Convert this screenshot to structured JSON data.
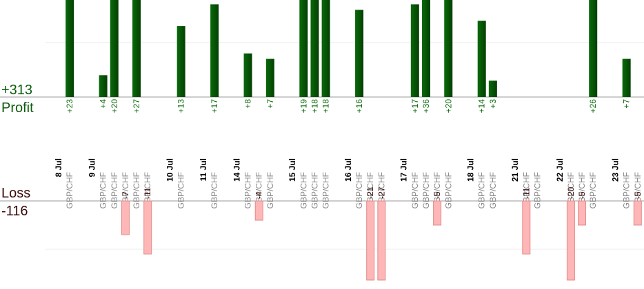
{
  "chart_data": {
    "type": "profit-loss",
    "profit_total": "+313",
    "profit_label": "Profit",
    "loss_label": "Loss",
    "loss_total": "-116",
    "profit_ylim": [
      0,
      17.8
    ],
    "profit_yticks": [
      0,
      10
    ],
    "loss_ylim": [
      0,
      -16.4
    ],
    "loss_yticks": [
      0,
      -10
    ],
    "days": [
      {
        "date": "8 Jul",
        "trades": [
          {
            "pair": "GBP/CHF",
            "value": 23,
            "label": "+23"
          }
        ]
      },
      {
        "date": "9 Jul",
        "trades": [
          {
            "pair": "GBP/CHF",
            "value": 4,
            "label": "+4"
          },
          {
            "pair": "GBP/CHF",
            "value": 20,
            "label": "+20"
          },
          {
            "pair": "GBP/CHF",
            "value": -7
          },
          {
            "pair": "GBP/CHF",
            "value": 27,
            "label": "+27"
          },
          {
            "pair": "GBP/CHF",
            "value": -11
          }
        ]
      },
      {
        "date": "10 Jul",
        "trades": [
          {
            "pair": "GBP/CHF",
            "value": 13,
            "label": "+13"
          }
        ]
      },
      {
        "date": "11 Jul",
        "trades": [
          {
            "pair": "GBP/CHF",
            "value": 17,
            "label": "+17"
          }
        ]
      },
      {
        "date": "14 Jul",
        "trades": [
          {
            "pair": "GBP/CHF",
            "value": 8,
            "label": "+8"
          },
          {
            "pair": "GBP/CHF",
            "value": -4
          },
          {
            "pair": "GBP/CHF",
            "value": 7,
            "label": "+7"
          }
        ]
      },
      {
        "date": "15 Jul",
        "trades": [
          {
            "pair": "GBP/CHF",
            "value": 19,
            "label": "+19"
          },
          {
            "pair": "GBP/CHF",
            "value": 18,
            "label": "+18"
          },
          {
            "pair": "GBP/CHF",
            "value": 18,
            "label": "+18"
          }
        ]
      },
      {
        "date": "16 Jul",
        "trades": [
          {
            "pair": "GBP/CHF",
            "value": 16,
            "label": "+16"
          },
          {
            "pair": "GBP/CHF",
            "value": -21
          },
          {
            "pair": "GBP/CHF",
            "value": -27
          }
        ]
      },
      {
        "date": "17 Jul",
        "trades": [
          {
            "pair": "GBP/CHF",
            "value": 17,
            "label": "+17"
          },
          {
            "pair": "GBP/CHF",
            "value": 36,
            "label": "+36"
          },
          {
            "pair": "GBP/CHF",
            "value": -5
          },
          {
            "pair": "GBP/CHF",
            "value": 20,
            "label": "+20"
          }
        ]
      },
      {
        "date": "18 Jul",
        "trades": [
          {
            "pair": "GBP/CHF",
            "value": 14,
            "label": "+14"
          },
          {
            "pair": "GBP/CHF",
            "value": 3,
            "label": "+3"
          }
        ]
      },
      {
        "date": "21 Jul",
        "trades": [
          {
            "pair": "GBP/CHF",
            "value": -11
          },
          {
            "pair": "GBP/CHF",
            "value": null
          }
        ]
      },
      {
        "date": "22 Jul",
        "trades": [
          {
            "pair": "GBP/CHF",
            "value": -20
          },
          {
            "pair": "GBP/CHF",
            "value": -5
          },
          {
            "pair": "GBP/CHF",
            "value": 26,
            "label": "+26"
          }
        ]
      },
      {
        "date": "23 Jul",
        "trades": [
          {
            "pair": "GBP/CHF",
            "value": 7,
            "label": "+7"
          },
          {
            "pair": "GBP/CHF",
            "value": -5
          }
        ]
      }
    ]
  }
}
